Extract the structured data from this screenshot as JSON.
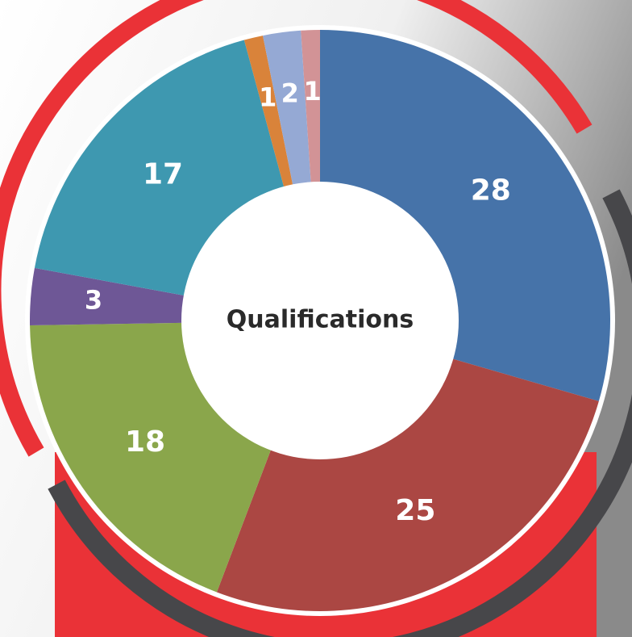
{
  "chart_data": {
    "type": "donut",
    "title": "Qualifications",
    "values": [
      28,
      25,
      18,
      3,
      17,
      1,
      2,
      1
    ],
    "colors": [
      "#4673a9",
      "#ab4743",
      "#8aa64b",
      "#6e5796",
      "#3e98b0",
      "#d9833a",
      "#95a9d4",
      "#d29396"
    ]
  }
}
